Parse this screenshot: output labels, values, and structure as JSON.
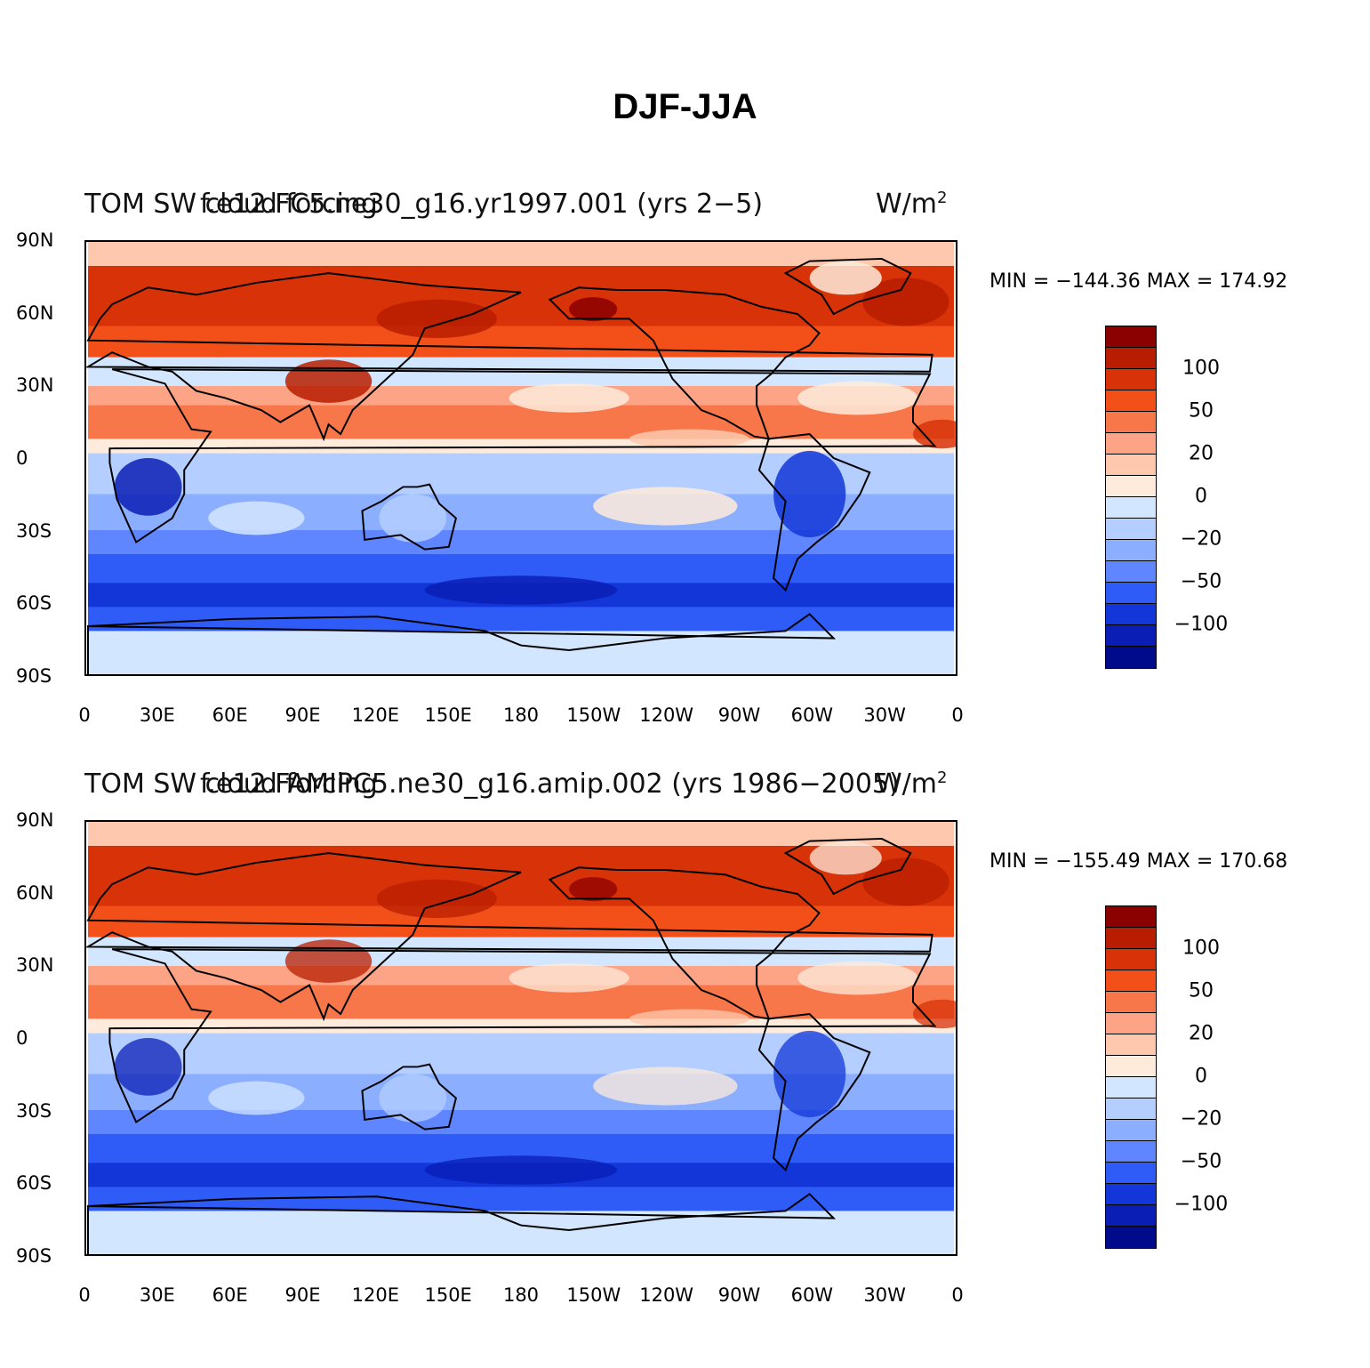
{
  "figure": {
    "title": "DJF-JJA"
  },
  "axes": {
    "y_ticks": [
      "90N",
      "60N",
      "30N",
      "0",
      "30S",
      "60S",
      "90S"
    ],
    "x_ticks": [
      "0",
      "30E",
      "60E",
      "90E",
      "120E",
      "150E",
      "180",
      "150W",
      "120W",
      "90W",
      "60W",
      "30W",
      "0"
    ]
  },
  "colorbar": {
    "colors": [
      "#8b0000",
      "#b81d00",
      "#d83208",
      "#f24f19",
      "#f8774a",
      "#fca485",
      "#fdc8ad",
      "#feebdb",
      "#d3e6ff",
      "#b3ceff",
      "#8caeff",
      "#5f86ff",
      "#2f5cf6",
      "#1236d8",
      "#0a1eb5",
      "#000b8c"
    ],
    "labels": [
      "100",
      "50",
      "20",
      "0",
      "−20",
      "−50",
      "−100"
    ]
  },
  "panels": [
    {
      "title_left": "TOM  SW cloud forcing",
      "title_center": "f.e12.FC5.ne30_g16.yr1997.001 (yrs 2−5)",
      "units": "W/m",
      "units_sup": "2",
      "minmax": "MIN = −144.36  MAX = 174.92"
    },
    {
      "title_left": "TOM  SW cloud forcing",
      "title_center": "f.e12.FAMIPC5.ne30_g16.amip.002 (yrs 1986−2005)",
      "units": "W/m",
      "units_sup": "2",
      "minmax": "MIN = −155.49  MAX = 170.68"
    }
  ]
}
